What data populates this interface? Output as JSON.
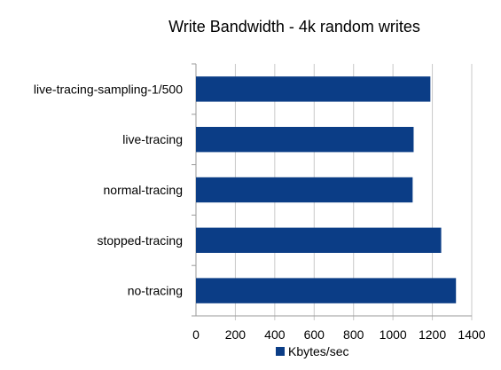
{
  "chart_data": {
    "type": "bar",
    "orientation": "horizontal",
    "title": "Write Bandwidth - 4k random writes",
    "xlabel": "",
    "ylabel": "",
    "categories": [
      "live-tracing-sampling-1/500",
      "live-tracing",
      "normal-tracing",
      "stopped-tracing",
      "no-tracing"
    ],
    "series": [
      {
        "name": "Kbytes/sec",
        "values": [
          1190,
          1105,
          1100,
          1245,
          1320
        ]
      }
    ],
    "xlim": [
      0,
      1400
    ],
    "xticks": [
      0,
      200,
      400,
      600,
      800,
      1000,
      1200,
      1400
    ],
    "grid": true,
    "legend_position": "bottom",
    "colors": {
      "bar": "#0b3d86",
      "grid": "#c8c8c8",
      "axis": "#9a9a9a"
    }
  }
}
